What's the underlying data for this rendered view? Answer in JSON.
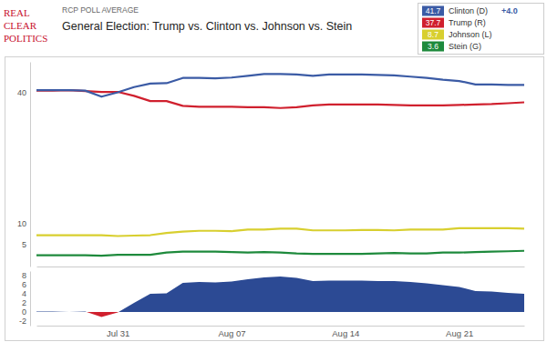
{
  "logo": {
    "lines": [
      "REAL",
      "CLEAR",
      "POLITICS"
    ]
  },
  "chart_data": [
    {
      "type": "line",
      "subtitle": "RCP POLL AVERAGE",
      "title": "General Election: Trump vs. Clinton vs. Johnson vs. Stein",
      "categories": [
        null,
        null,
        null,
        null,
        null,
        null,
        null,
        null,
        null,
        null,
        null,
        null,
        null,
        null,
        null,
        null,
        null,
        null,
        null,
        null,
        null,
        null,
        null,
        null,
        null,
        null,
        null,
        null,
        null,
        null,
        null
      ],
      "series": [
        {
          "name": "Clinton (D)",
          "color": "#3b5ba5",
          "lead": "+4.0",
          "values": [
            40.5,
            40.5,
            40.5,
            40.4,
            39.0,
            40.0,
            41.2,
            42.0,
            42.1,
            43.3,
            43.3,
            43.2,
            43.4,
            43.8,
            44.2,
            44.2,
            44.1,
            43.8,
            44.1,
            44.1,
            44.1,
            44.0,
            43.9,
            43.6,
            43.3,
            42.9,
            42.6,
            41.8,
            41.8,
            41.7,
            41.7
          ]
        },
        {
          "name": "Trump (R)",
          "color": "#d0202e",
          "values": [
            40.4,
            40.4,
            40.5,
            40.3,
            40.1,
            40.1,
            39.2,
            38.0,
            38.0,
            36.9,
            36.7,
            36.7,
            36.7,
            36.6,
            36.6,
            36.4,
            36.6,
            37.0,
            37.2,
            37.2,
            37.2,
            37.2,
            37.1,
            37.0,
            37.0,
            37.0,
            37.1,
            37.2,
            37.3,
            37.5,
            37.7
          ]
        },
        {
          "name": "Johnson (L)",
          "color": "#d8cf2f",
          "values": [
            7.2,
            7.2,
            7.2,
            7.2,
            7.2,
            7.0,
            7.1,
            7.2,
            7.7,
            8.0,
            8.2,
            8.2,
            8.1,
            8.5,
            8.5,
            8.7,
            8.7,
            8.3,
            8.3,
            8.3,
            8.4,
            8.4,
            8.3,
            8.5,
            8.5,
            8.5,
            8.8,
            8.8,
            8.8,
            8.8,
            8.7
          ]
        },
        {
          "name": "Stein (G)",
          "color": "#1e8a3c",
          "values": [
            2.6,
            2.6,
            2.6,
            2.6,
            2.5,
            2.7,
            2.7,
            2.7,
            3.2,
            3.4,
            3.4,
            3.4,
            3.3,
            3.2,
            3.3,
            3.2,
            3.0,
            2.9,
            2.9,
            2.9,
            2.9,
            3.0,
            3.1,
            3.0,
            3.0,
            3.2,
            3.2,
            3.3,
            3.4,
            3.5,
            3.6
          ]
        }
      ],
      "ylim": [
        0,
        47
      ],
      "yticks": [
        5,
        10,
        40
      ],
      "grid": false,
      "legend": "top-right",
      "tick_labels": "y"
    },
    {
      "type": "area",
      "categories": [
        null,
        null,
        null,
        null,
        null,
        "Jul 31",
        null,
        null,
        null,
        null,
        null,
        null,
        "Aug 07",
        null,
        null,
        null,
        null,
        null,
        null,
        "Aug 14",
        null,
        null,
        null,
        null,
        null,
        null,
        "Aug 21",
        null,
        null,
        null,
        null
      ],
      "series": [
        {
          "color": "#2c4a94",
          "values": [
            0.1,
            0.1,
            0.0,
            0.1,
            -1.1,
            -0.1,
            2.0,
            4.0,
            4.1,
            6.4,
            6.6,
            6.5,
            6.7,
            7.2,
            7.6,
            7.8,
            7.5,
            6.8,
            6.9,
            6.9,
            6.9,
            6.8,
            6.8,
            6.6,
            6.3,
            5.9,
            5.5,
            4.6,
            4.5,
            4.2,
            4.0
          ]
        }
      ],
      "ylim": [
        -3,
        9
      ],
      "yticks": [
        -2,
        0,
        2,
        4,
        6,
        8
      ],
      "grid": false
    }
  ]
}
